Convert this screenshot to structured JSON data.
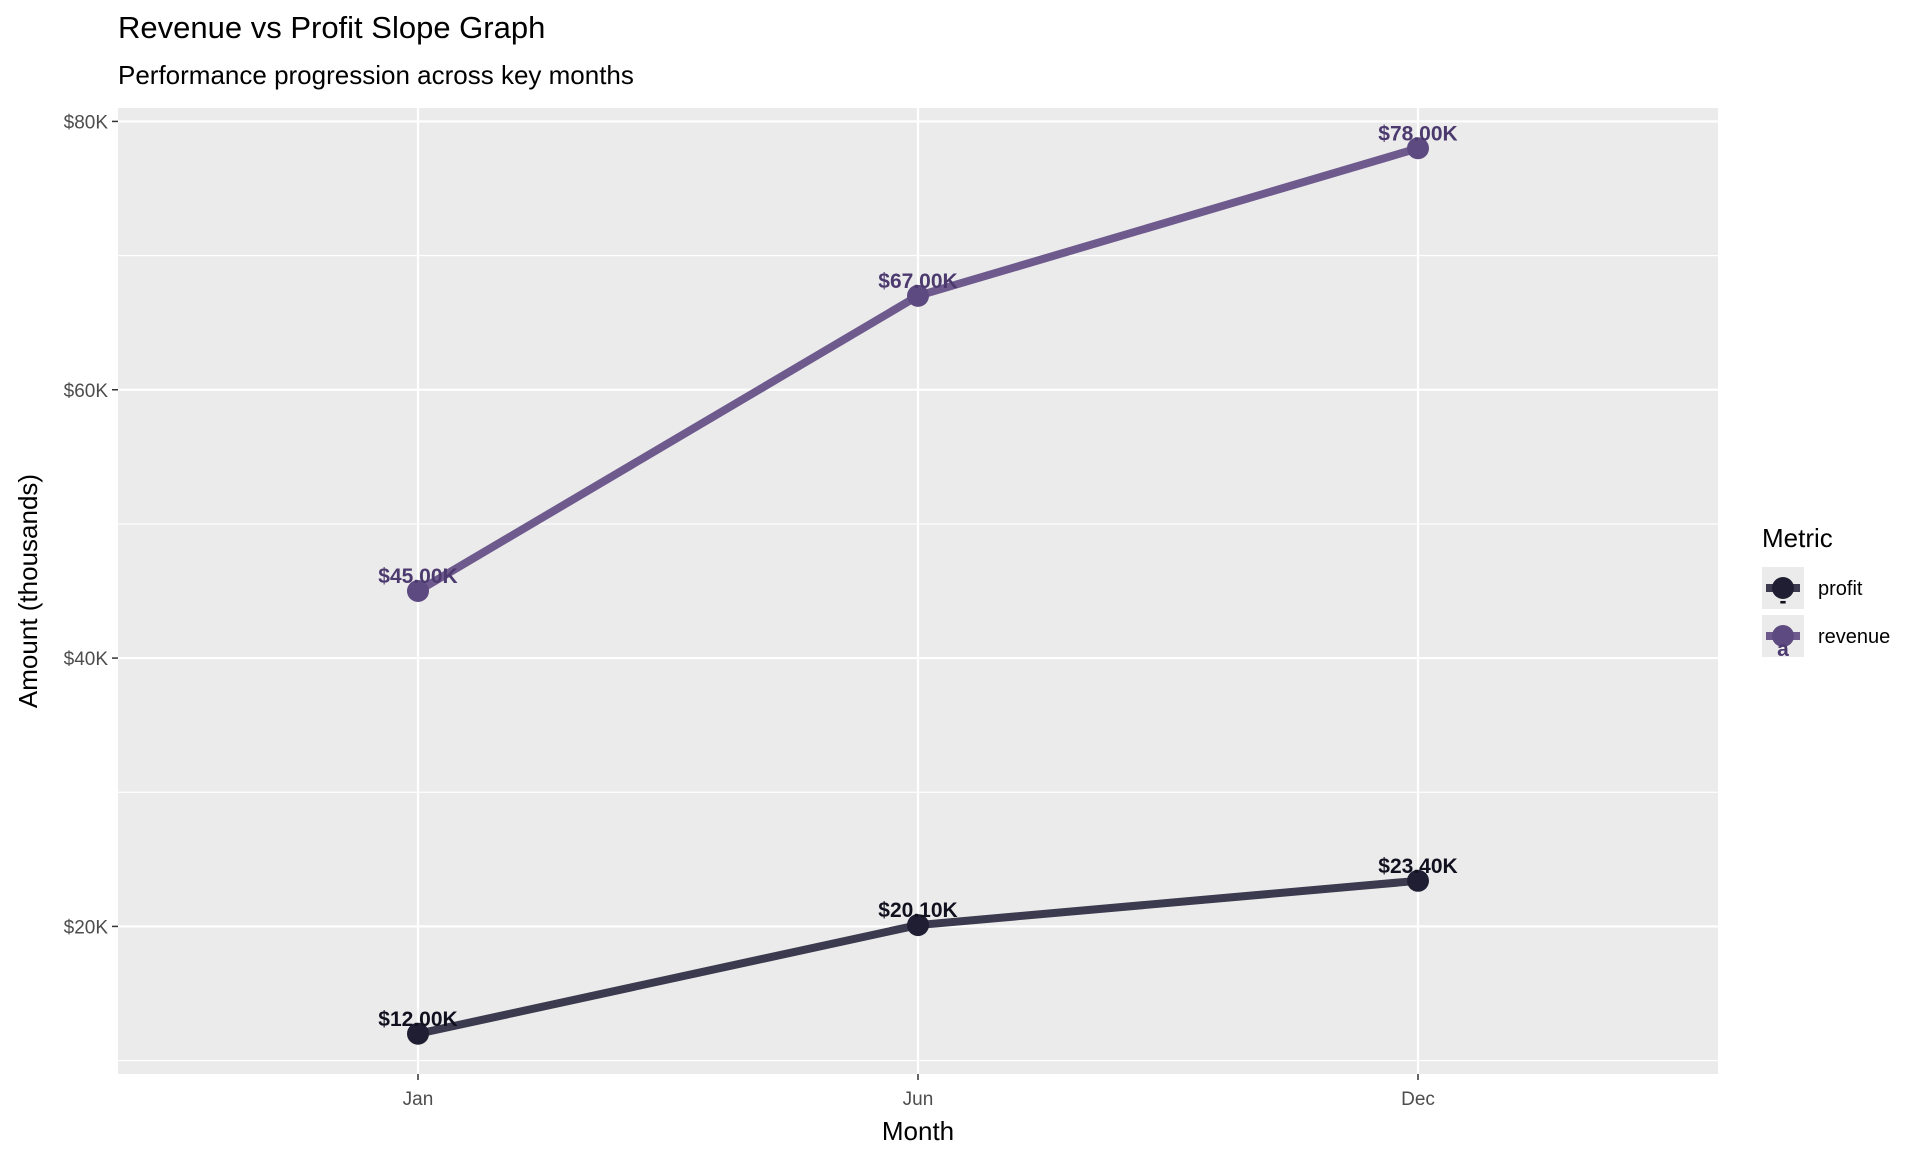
{
  "chart_data": {
    "type": "line",
    "title": "Revenue vs Profit Slope Graph",
    "subtitle": "Performance progression across key months",
    "xlabel": "Month",
    "ylabel": "Amount (thousands)",
    "categories": [
      "Jan",
      "Jun",
      "Dec"
    ],
    "ylim": [
      9,
      81
    ],
    "yticks": [
      20,
      40,
      60,
      80
    ],
    "ytick_labels": [
      "$20K",
      "$40K",
      "$60K",
      "$80K"
    ],
    "grid": true,
    "legend": {
      "title": "Metric",
      "position": "right",
      "key_letters": [
        "-",
        "a"
      ]
    },
    "series": [
      {
        "name": "profit",
        "values": [
          12.0,
          20.1,
          23.4
        ],
        "labels": [
          "$12.00K",
          "$20.10K",
          "$23.40K"
        ],
        "line_color": "#3b3a4e",
        "point_color": "#1f1e33",
        "label_color": "#11101f"
      },
      {
        "name": "revenue",
        "values": [
          45.0,
          67.0,
          78.0
        ],
        "labels": [
          "$45.00K",
          "$67.00K",
          "$78.00K"
        ],
        "line_color": "#6f5a8e",
        "point_color": "#5d4a80",
        "label_color": "#4c3a6f"
      }
    ]
  }
}
